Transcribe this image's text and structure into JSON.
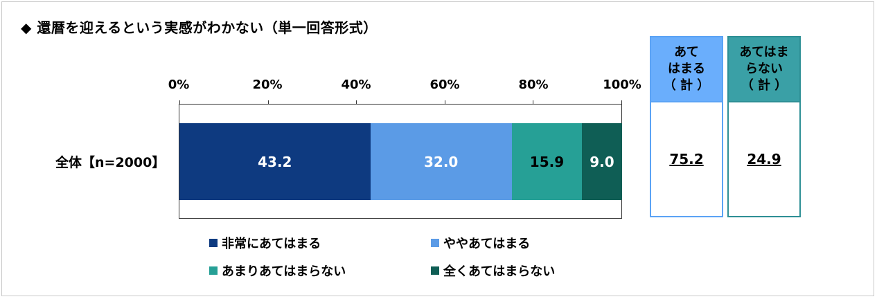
{
  "title": "◆ 還暦を迎えるという実感がわかない（単一回答形式）",
  "chart_data": {
    "type": "bar",
    "orientation": "horizontal-stacked-100",
    "categories": [
      "全体【n=2000】"
    ],
    "x_ticks": [
      "0%",
      "20%",
      "40%",
      "60%",
      "80%",
      "100%"
    ],
    "xlim": [
      0,
      100
    ],
    "series": [
      {
        "name": "非常にあてはまる",
        "values": [
          43.2
        ],
        "color": "#0e3a80"
      },
      {
        "name": "ややあてはまる",
        "values": [
          32.0
        ],
        "color": "#5b9be6"
      },
      {
        "name": "あまりあてはまらない",
        "values": [
          15.9
        ],
        "color": "#26a096"
      },
      {
        "name": "全くあてはまらない",
        "values": [
          9.0
        ],
        "color": "#0f5e55"
      }
    ],
    "legend_position": "bottom",
    "summary_columns": [
      {
        "header_lines": [
          "あて",
          "はまる",
          "（ 計 ）"
        ],
        "value": "75.2",
        "border": "#5ba3f5",
        "header_bg": "#6aaefc"
      },
      {
        "header_lines": [
          "あてはま",
          "らない",
          "（ 計 ）"
        ],
        "value": "24.9",
        "border": "#2e8f95",
        "header_bg": "#3aa0a6"
      }
    ]
  }
}
